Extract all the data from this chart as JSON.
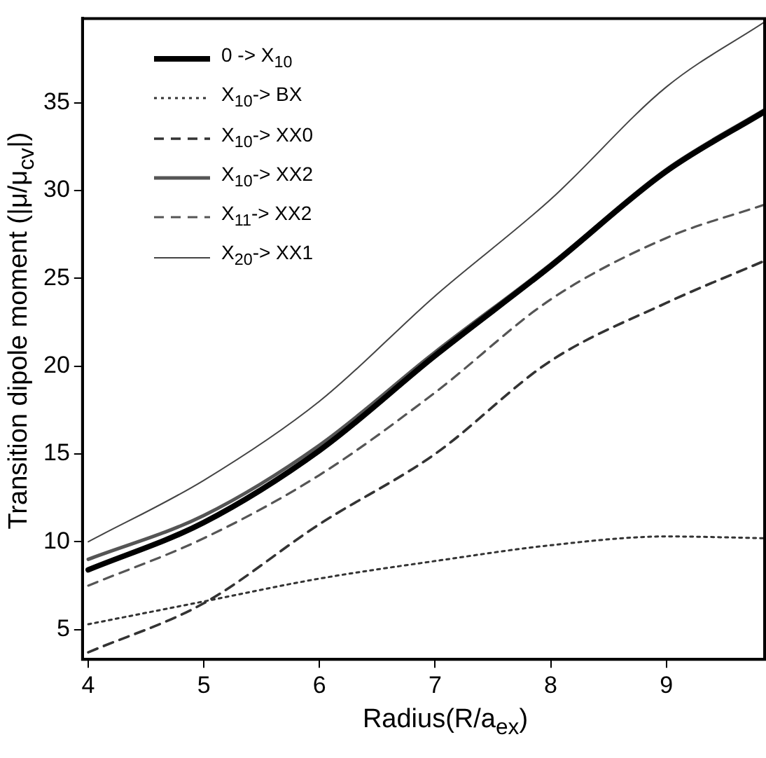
{
  "chart_data": {
    "type": "line",
    "xlabel": "Radius(R/a$_{ex}$)",
    "ylabel": "Transition dipole moment (|μ/μ$_{cv}$|)",
    "x": [
      4,
      5,
      6,
      7,
      8,
      9,
      9.85
    ],
    "series": [
      {
        "name": "0 -> X$_{10}$",
        "color": "#000000",
        "line_style": "solid",
        "values": [
          8.4,
          11.1,
          15.2,
          20.6,
          25.7,
          31.1,
          34.5
        ]
      },
      {
        "name": "X$_{10}$-> BX",
        "color": "#333333",
        "line_style": "dotted",
        "values": [
          5.3,
          6.6,
          7.9,
          8.9,
          9.8,
          10.3,
          10.2
        ]
      },
      {
        "name": "X$_{10}$-> XX0",
        "color": "#333333",
        "line_style": "dashed",
        "values": [
          3.7,
          6.5,
          11.0,
          15.0,
          20.3,
          23.6,
          26.0
        ]
      },
      {
        "name": "X$_{10}$-> XX2",
        "color": "#555555",
        "line_style": "solid",
        "values": [
          9.0,
          11.5,
          15.5,
          20.8,
          25.8,
          31.2,
          34.6
        ]
      },
      {
        "name": "X$_{11}$-> XX2",
        "color": "#555555",
        "line_style": "dashed",
        "values": [
          7.5,
          10.2,
          13.8,
          18.5,
          23.8,
          27.3,
          29.2
        ]
      },
      {
        "name": "X$_{20}$-> XX1",
        "color": "#444444",
        "line_style": "solid",
        "values": [
          10.0,
          13.5,
          18.0,
          24.0,
          29.5,
          35.9,
          39.6
        ]
      }
    ],
    "xlim": [
      3.95,
      9.85
    ],
    "ylim": [
      3.3,
      39.8
    ],
    "xticks": [
      4,
      5,
      6,
      7,
      8,
      9
    ],
    "yticks": [
      5,
      10,
      15,
      20,
      25,
      30,
      35
    ],
    "grid": false,
    "legend": "top left",
    "marker": "none"
  }
}
